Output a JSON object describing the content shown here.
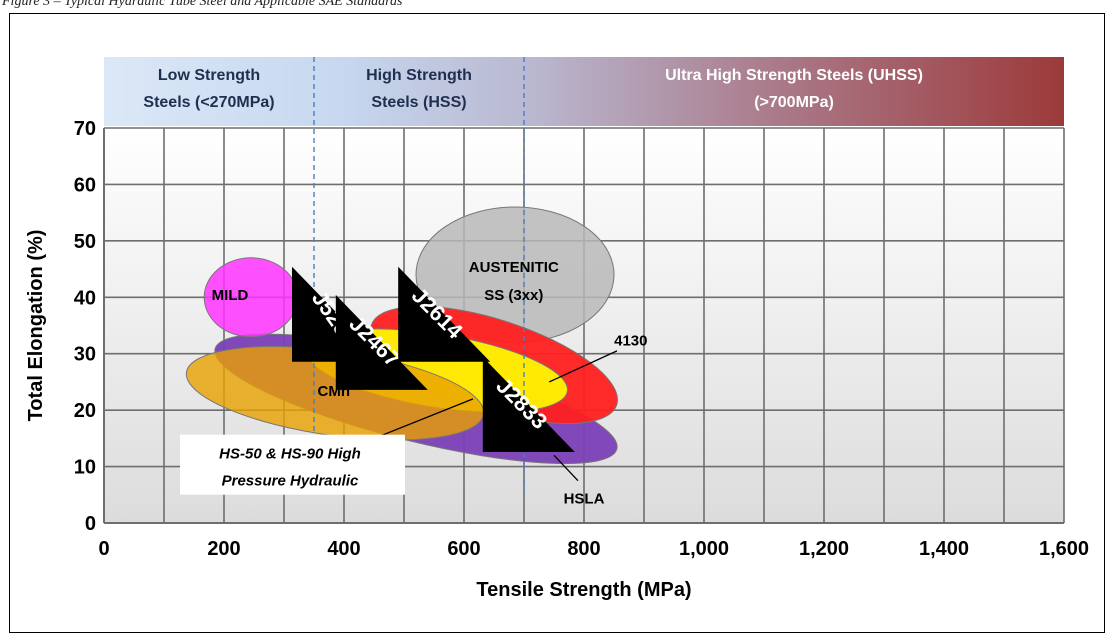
{
  "caption": "Figure 3 – Typical Hydraulic Tube Steel and Applicable SAE Standards",
  "chart_data": {
    "type": "scatter",
    "title": "",
    "xlabel": "Tensile Strength (MPa)",
    "ylabel": "Total Elongation (%)",
    "xlim": [
      0,
      1600
    ],
    "ylim": [
      0,
      70
    ],
    "x_ticks": [
      {
        "value": 0,
        "label": "0"
      },
      {
        "value": 200,
        "label": "200"
      },
      {
        "value": 400,
        "label": "400"
      },
      {
        "value": 600,
        "label": "600"
      },
      {
        "value": 800,
        "label": "800"
      },
      {
        "value": 1000,
        "label": "1,000"
      },
      {
        "value": 1200,
        "label": "1,200"
      },
      {
        "value": 1400,
        "label": "1,400"
      },
      {
        "value": 1600,
        "label": "1,600"
      }
    ],
    "y_ticks": [
      {
        "value": 0,
        "label": "0"
      },
      {
        "value": 10,
        "label": "10"
      },
      {
        "value": 20,
        "label": "20"
      },
      {
        "value": 30,
        "label": "30"
      },
      {
        "value": 40,
        "label": "40"
      },
      {
        "value": 50,
        "label": "50"
      },
      {
        "value": 60,
        "label": "60"
      },
      {
        "value": 70,
        "label": "70"
      }
    ],
    "grid": true,
    "grid_x_step": 100,
    "grid_y_step": 10,
    "bands": [
      {
        "x0": 0,
        "x1": 350,
        "line1": "Low Strength",
        "line2": "Steels (<270MPa)",
        "text_color": "#1f2f4f"
      },
      {
        "x0": 350,
        "x1": 700,
        "line1": "High Strength",
        "line2": "Steels (HSS)",
        "text_color": "#1f2f4f"
      },
      {
        "x0": 700,
        "x1": 1600,
        "line1": "Ultra High Strength Steels (UHSS)",
        "line2": "(>700MPa)",
        "text_color": "#ffffff"
      }
    ],
    "divider_lines_x": [
      350,
      700
    ],
    "regions": [
      {
        "name": "AUSTENITIC SS (3xx)",
        "cx": 685,
        "cy": 44,
        "rx": 165,
        "ry": 12,
        "angle": 0,
        "color": "#b8b8b8",
        "opacity": 0.85
      },
      {
        "name": "HSLA",
        "cx": 520,
        "cy": 22,
        "rx": 345,
        "ry": 7.5,
        "angle": 14,
        "color": "#7a3fb5",
        "opacity": 0.95
      },
      {
        "name": "4130",
        "cx": 650,
        "cy": 28,
        "rx": 215,
        "ry": 8,
        "angle": 18,
        "color": "#ff2020",
        "opacity": 0.95
      },
      {
        "name": "HS-50 & HS-90",
        "cx": 555,
        "cy": 27,
        "rx": 220,
        "ry": 6.5,
        "angle": 9,
        "color": "#ffff00",
        "opacity": 0.9
      },
      {
        "name": "CMn",
        "cx": 385,
        "cy": 23,
        "rx": 250,
        "ry": 7.5,
        "angle": 8,
        "color": "#e8a000",
        "opacity": 0.8
      },
      {
        "name": "MILD",
        "cx": 245,
        "cy": 40,
        "rx": 78,
        "ry": 7,
        "angle": 0,
        "color": "#ff33ff",
        "opacity": 0.85
      }
    ],
    "region_labels": [
      {
        "text": "MILD",
        "x": 210,
        "y": 39.5
      },
      {
        "text": "CMn",
        "x": 383,
        "y": 22.5
      },
      {
        "text": "AUSTENITIC",
        "x": 683,
        "y": 44.5
      },
      {
        "text": "SS (3xx)",
        "x": 683,
        "y": 39.5
      },
      {
        "text": "4130",
        "x": 878,
        "y": 31.5
      },
      {
        "text": "HSLA",
        "x": 800,
        "y": 3.5
      }
    ],
    "standards": [
      {
        "label": "J525",
        "x": 390,
        "y": 37,
        "angle": 55
      },
      {
        "label": "J2467",
        "x": 463,
        "y": 32,
        "angle": 45
      },
      {
        "label": "J2614",
        "x": 567,
        "y": 37,
        "angle": 45
      },
      {
        "label": "J2833",
        "x": 708,
        "y": 21,
        "angle": 45
      }
    ],
    "annotations": [
      {
        "line1": "HS-50 & HS-90 High",
        "line2": "Pressure Hydraulic",
        "text_x": 310,
        "text_y": 7.5,
        "to_x": 615,
        "to_y": 22
      }
    ]
  }
}
